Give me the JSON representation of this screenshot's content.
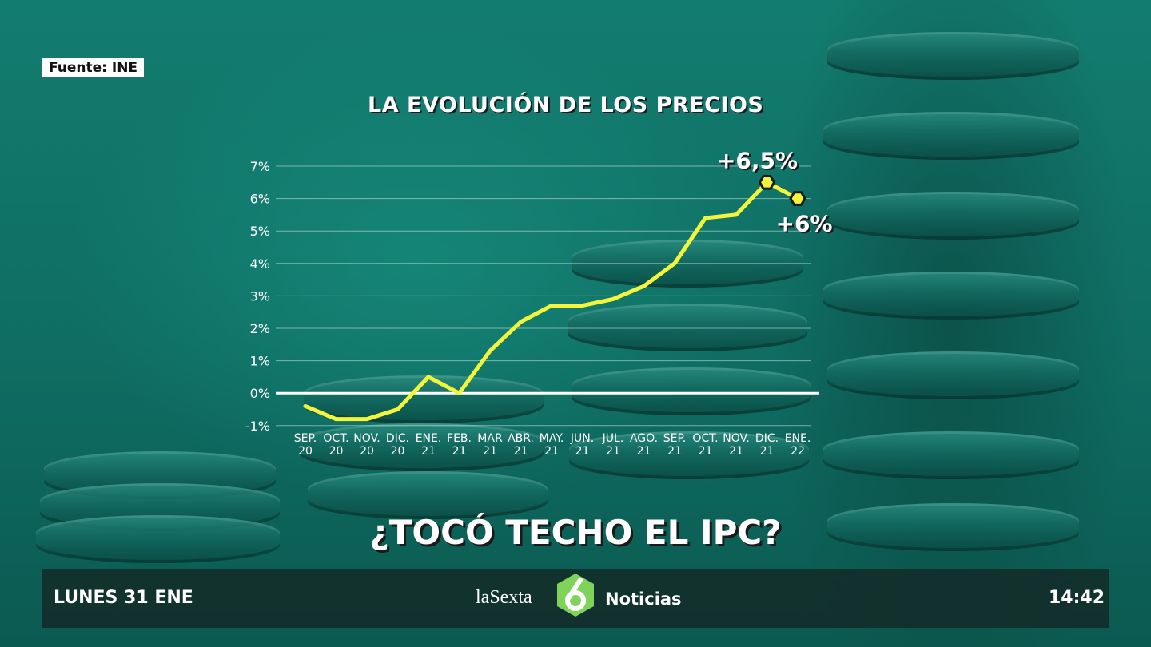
{
  "source": "Fuente: INE",
  "chart_data": {
    "type": "line",
    "title": "LA EVOLUCIÓN DE LOS PRECIOS",
    "categories": [
      [
        "SEP.",
        "20"
      ],
      [
        "OCT.",
        "20"
      ],
      [
        "NOV.",
        "20"
      ],
      [
        "DIC.",
        "20"
      ],
      [
        "ENE.",
        "21"
      ],
      [
        "FEB.",
        "21"
      ],
      [
        "MAR",
        "21"
      ],
      [
        "ABR.",
        "21"
      ],
      [
        "MAY.",
        "21"
      ],
      [
        "JUN.",
        "21"
      ],
      [
        "JUL.",
        "21"
      ],
      [
        "AGO.",
        "21"
      ],
      [
        "SEP.",
        "21"
      ],
      [
        "OCT.",
        "21"
      ],
      [
        "NOV.",
        "21"
      ],
      [
        "DIC.",
        "21"
      ],
      [
        "ENE.",
        "22"
      ]
    ],
    "values": [
      -0.4,
      -0.8,
      -0.8,
      -0.5,
      0.5,
      0.0,
      1.3,
      2.2,
      2.7,
      2.7,
      2.9,
      3.3,
      4.0,
      5.4,
      5.5,
      6.5,
      6.0
    ],
    "y_ticks": [
      "7%",
      "6%",
      "5%",
      "4%",
      "3%",
      "2%",
      "1%",
      "0%",
      "-1%"
    ],
    "ylim": [
      -1,
      7
    ],
    "grid": true,
    "annotations": [
      {
        "index": 15,
        "text": "+6,5%"
      },
      {
        "index": 16,
        "text": "+6%"
      }
    ],
    "line_color": "#f4f53a"
  },
  "headline": "¿TOCÓ TECHO EL IPC?",
  "footer": {
    "date": "LUNES 31 ENE",
    "brand": "laSexta",
    "program": "Noticias",
    "time": "14:42"
  }
}
